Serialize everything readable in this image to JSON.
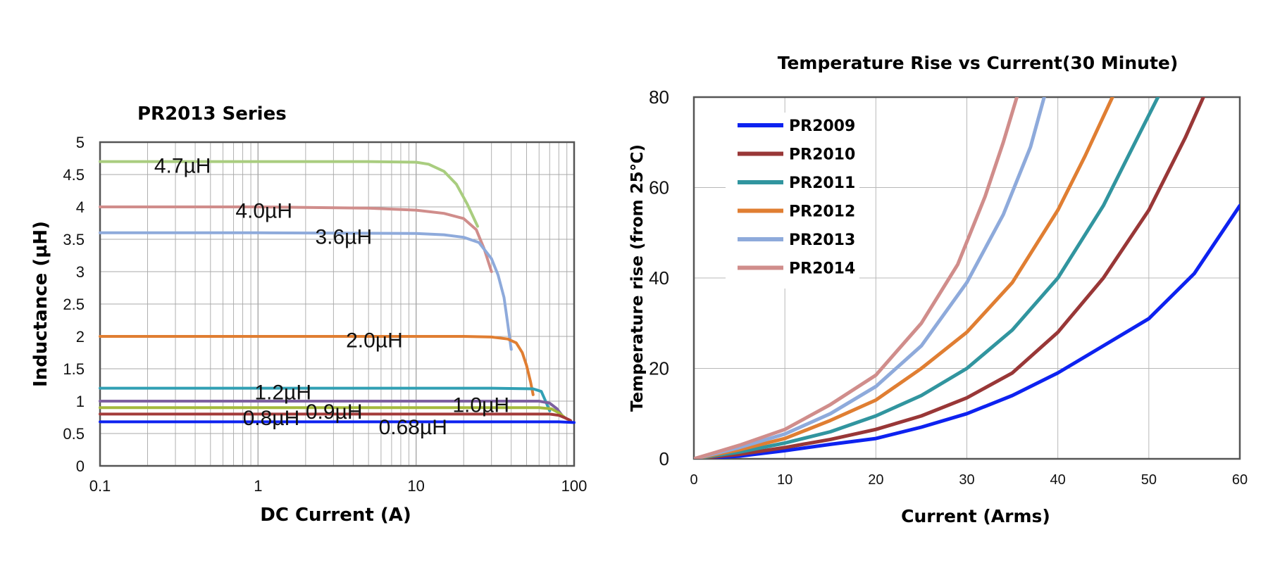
{
  "chart_data": [
    {
      "type": "line",
      "title": "PR2013 Series",
      "xlabel": "DC Current (A)",
      "ylabel": "Inductance (µH)",
      "x_scale": "log",
      "xlim": [
        0.1,
        100
      ],
      "ylim": [
        0,
        5
      ],
      "x_ticks": [
        "0.1",
        "1",
        "10",
        "100"
      ],
      "y_ticks": [
        "0",
        "0.5",
        "1",
        "1.5",
        "2",
        "2.5",
        "3",
        "3.5",
        "4",
        "4.5",
        "5"
      ],
      "grid": true,
      "series": [
        {
          "name": "4.7µH",
          "color": "#a9cd7f",
          "x": [
            0.1,
            1,
            5,
            10,
            12,
            15,
            18,
            21,
            24.5
          ],
          "y": [
            4.7,
            4.7,
            4.7,
            4.69,
            4.66,
            4.55,
            4.35,
            4.05,
            3.7
          ],
          "label_at": [
            0.22,
            4.66
          ]
        },
        {
          "name": "4.0µH",
          "color": "#d08d8b",
          "x": [
            0.1,
            1,
            5,
            10,
            15,
            20,
            24,
            27,
            30
          ],
          "y": [
            4.0,
            4.0,
            3.98,
            3.95,
            3.9,
            3.82,
            3.65,
            3.35,
            3.0
          ],
          "label_at": [
            0.72,
            3.96
          ]
        },
        {
          "name": "3.6µH",
          "color": "#8eaadb",
          "x": [
            0.1,
            1,
            10,
            15,
            20,
            25,
            30,
            33,
            36,
            38,
            40
          ],
          "y": [
            3.6,
            3.6,
            3.59,
            3.57,
            3.53,
            3.45,
            3.2,
            2.95,
            2.6,
            2.2,
            1.8
          ],
          "label_at": [
            2.3,
            3.56
          ]
        },
        {
          "name": "2.0µH",
          "color": "#e07e32",
          "x": [
            0.1,
            1,
            10,
            20,
            30,
            38,
            43,
            47,
            50,
            53,
            55
          ],
          "y": [
            2.0,
            2.0,
            2.0,
            2.0,
            1.99,
            1.96,
            1.9,
            1.75,
            1.55,
            1.3,
            1.1
          ],
          "label_at": [
            3.6,
            1.96
          ]
        },
        {
          "name": "1.2µH",
          "color": "#31a0b4",
          "x": [
            0.1,
            1,
            10,
            30,
            55,
            62,
            66,
            70
          ],
          "y": [
            1.2,
            1.2,
            1.2,
            1.2,
            1.19,
            1.15,
            1.0,
            0.85
          ],
          "label_at": [
            0.95,
            1.16
          ]
        },
        {
          "name": "1.0µH",
          "color": "#7d60a0",
          "x": [
            0.1,
            1,
            10,
            40,
            60,
            70,
            78,
            85
          ],
          "y": [
            1.0,
            1.0,
            1.0,
            1.0,
            1.0,
            0.97,
            0.88,
            0.76
          ],
          "label_at": [
            17,
            0.96
          ]
        },
        {
          "name": "0.9µH",
          "color": "#a4b93c",
          "x": [
            0.1,
            1,
            10,
            40,
            60,
            72,
            80,
            88
          ],
          "y": [
            0.9,
            0.9,
            0.9,
            0.9,
            0.9,
            0.88,
            0.82,
            0.74
          ],
          "label_at": [
            2.0,
            0.86
          ]
        },
        {
          "name": "0.8µH",
          "color": "#a33b3a",
          "x": [
            0.1,
            1,
            10,
            40,
            70,
            80,
            88,
            95
          ],
          "y": [
            0.8,
            0.8,
            0.8,
            0.8,
            0.8,
            0.78,
            0.74,
            0.7
          ],
          "label_at": [
            0.8,
            0.76
          ]
        },
        {
          "name": "0.68µH",
          "color": "#0d22f0",
          "x": [
            0.1,
            1,
            10,
            40,
            80,
            100
          ],
          "y": [
            0.68,
            0.68,
            0.68,
            0.68,
            0.68,
            0.67
          ],
          "label_at": [
            5.8,
            0.62
          ]
        }
      ]
    },
    {
      "type": "line",
      "title": "Temperature Rise vs Current(30 Minute)",
      "xlabel": "Current (Arms)",
      "ylabel": "Temperature rise (from 25℃)",
      "xlim": [
        0,
        60
      ],
      "ylim": [
        0,
        80
      ],
      "x_ticks": [
        "0",
        "10",
        "20",
        "30",
        "40",
        "50",
        "60"
      ],
      "y_ticks": [
        "0",
        "20",
        "40",
        "60",
        "80"
      ],
      "grid": true,
      "legend": "top-left",
      "series": [
        {
          "name": "PR2009",
          "color": "#0d22f0",
          "x": [
            0,
            5,
            10,
            15,
            20,
            25,
            30,
            35,
            40,
            45,
            50,
            55,
            60
          ],
          "y": [
            0,
            0.6,
            1.8,
            3.2,
            4.5,
            7,
            10,
            14,
            19,
            25,
            31,
            41,
            56
          ]
        },
        {
          "name": "PR2010",
          "color": "#993737",
          "x": [
            0,
            5,
            10,
            15,
            20,
            25,
            30,
            35,
            40,
            45,
            50,
            54,
            56
          ],
          "y": [
            0,
            1,
            2.5,
            4.3,
            6.5,
            9.5,
            13.5,
            19,
            28,
            40,
            55,
            71,
            80
          ]
        },
        {
          "name": "PR2011",
          "color": "#31959f",
          "x": [
            0,
            5,
            10,
            15,
            20,
            25,
            30,
            35,
            40,
            45,
            49,
            51
          ],
          "y": [
            0,
            1.5,
            3.5,
            6,
            9.5,
            14,
            20,
            28.5,
            40,
            56,
            72,
            80
          ]
        },
        {
          "name": "PR2012",
          "color": "#e07e32",
          "x": [
            0,
            5,
            10,
            15,
            20,
            25,
            30,
            35,
            40,
            43,
            46
          ],
          "y": [
            0,
            2,
            4.5,
            8.5,
            13,
            20,
            28,
            39,
            55,
            67,
            80
          ]
        },
        {
          "name": "PR2013",
          "color": "#8eaadb",
          "x": [
            0,
            5,
            10,
            15,
            20,
            25,
            30,
            34,
            37,
            38.5
          ],
          "y": [
            0,
            2.5,
            5.5,
            10,
            16,
            25,
            39,
            54,
            69,
            80
          ]
        },
        {
          "name": "PR2014",
          "color": "#d08d8b",
          "x": [
            0,
            5,
            10,
            15,
            20,
            25,
            29,
            32,
            34,
            35.5
          ],
          "y": [
            0,
            3,
            6.5,
            12,
            18.5,
            30,
            43,
            58,
            70,
            80
          ]
        }
      ]
    }
  ]
}
